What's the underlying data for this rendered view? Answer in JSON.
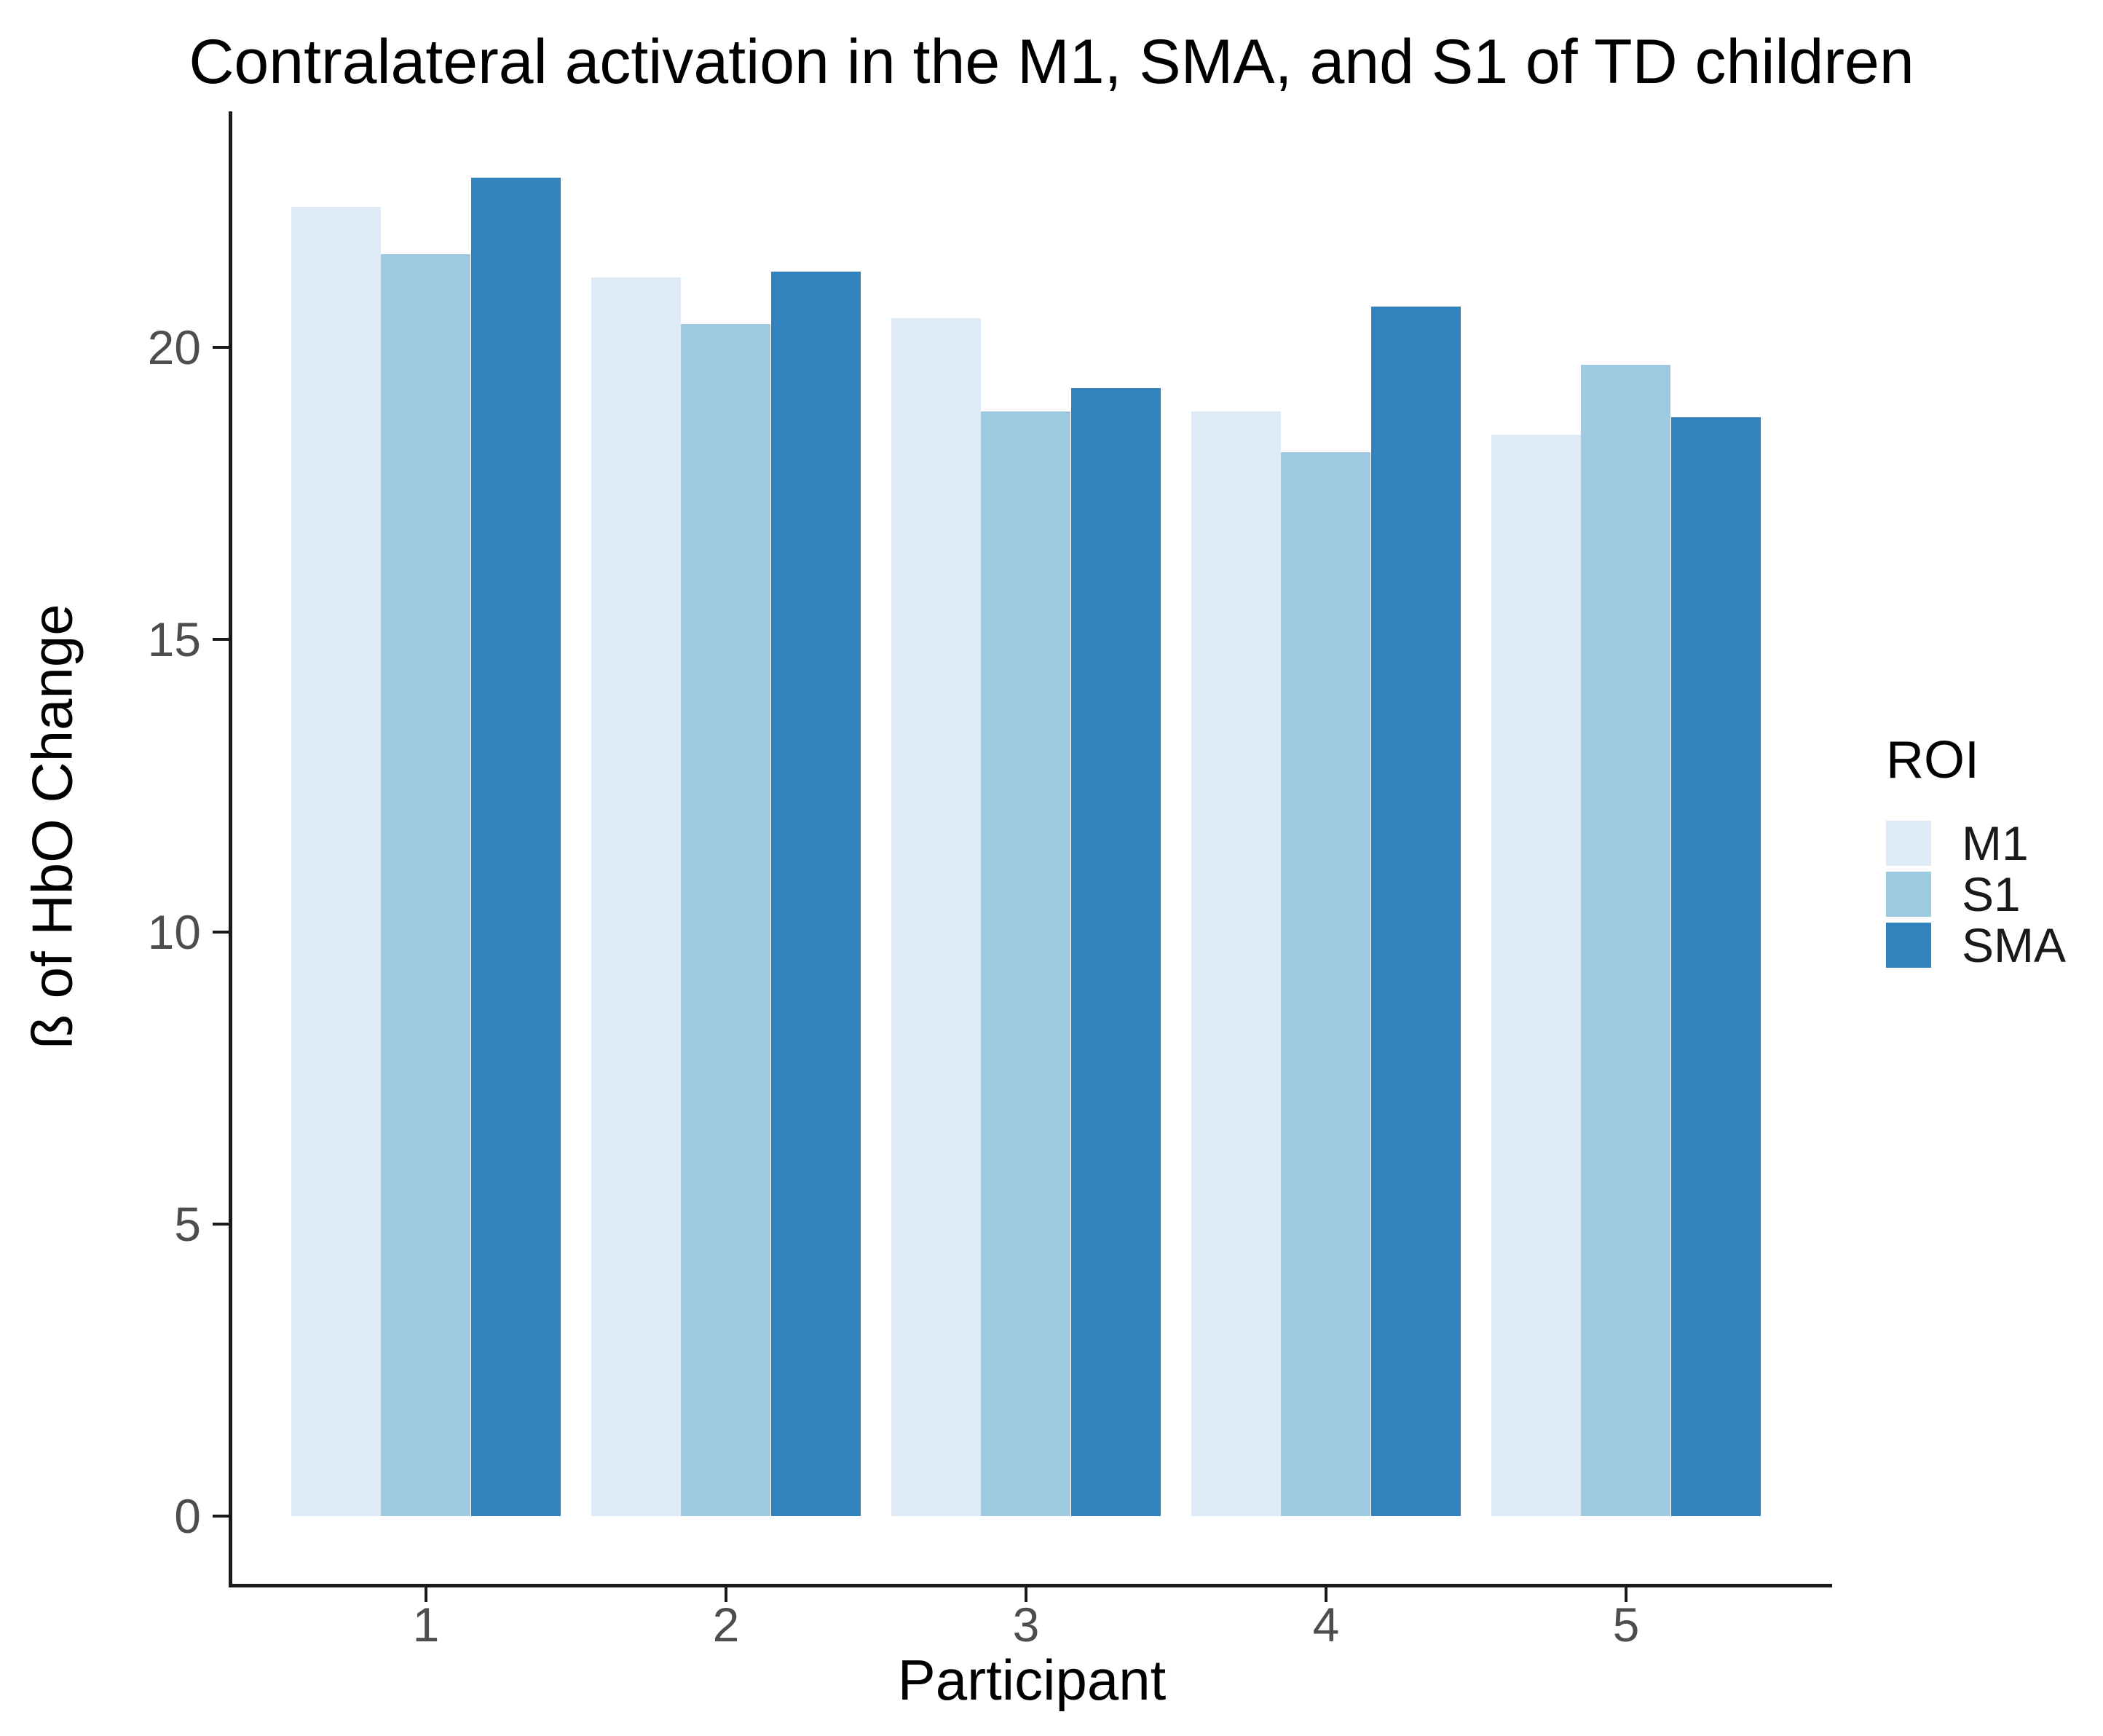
{
  "title": "Contralateral activation in the M1, SMA, and S1 of TD children",
  "chart_data": {
    "type": "bar",
    "title": "Contralateral activation in the M1, SMA, and S1 of TD children",
    "xlabel": "Participant",
    "ylabel": "ß of HbO Change",
    "categories": [
      "1",
      "2",
      "3",
      "4",
      "5"
    ],
    "series": [
      {
        "name": "M1",
        "color": "#DEEBF7",
        "values": [
          22.4,
          21.2,
          20.5,
          18.9,
          18.5
        ]
      },
      {
        "name": "S1",
        "color": "#9ECAE1",
        "values": [
          21.6,
          20.4,
          18.9,
          18.2,
          19.7
        ]
      },
      {
        "name": "SMA",
        "color": "#3182BD",
        "values": [
          22.9,
          21.3,
          19.3,
          20.7,
          18.8
        ]
      }
    ],
    "y_ticks": [
      0,
      5,
      10,
      15,
      20
    ],
    "ylim": [
      0,
      24
    ],
    "grid": "off",
    "legend_title": "ROI",
    "legend_position": "right",
    "axis_color": "#1a1a1a",
    "tick_label_color": "#4d4d4d",
    "background": "#ffffff"
  }
}
